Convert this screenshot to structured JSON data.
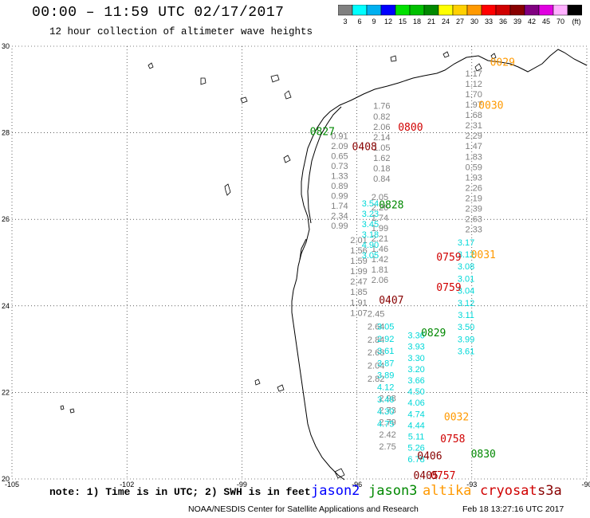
{
  "title": "00:00 – 11:59 UTC 02/17/2017",
  "subtitle": "12 hour collection of altimeter wave heights",
  "legend": {
    "colors": [
      "#808080",
      "#00ffff",
      "#00b0f0",
      "#0000ff",
      "#00e000",
      "#00c000",
      "#008800",
      "#ffff00",
      "#ffd000",
      "#ff9900",
      "#ff0000",
      "#d00000",
      "#880000",
      "#800080",
      "#e000e0",
      "#ffb0ff",
      "#000000"
    ],
    "labels": [
      "3",
      "6",
      "9",
      "12",
      "15",
      "18",
      "21",
      "24",
      "27",
      "30",
      "33",
      "36",
      "39",
      "42",
      "45",
      "70",
      "(ft)"
    ]
  },
  "axes": {
    "lon_ticks": [
      "-105",
      "-102",
      "-99",
      "-96",
      "-93",
      "-90"
    ],
    "lat_ticks": [
      "30",
      "28",
      "26",
      "24",
      "22",
      "20"
    ]
  },
  "note": "note: 1) Time is in UTC; 2) SWH is in feet",
  "satellites": [
    {
      "name": "jason2",
      "color": "#0000ff"
    },
    {
      "name": "jason3",
      "color": "#008800"
    },
    {
      "name": "altika",
      "color": "#ff9900"
    },
    {
      "name": "cryosat",
      "color": "#d00000"
    },
    {
      "name": "s3a",
      "color": "#880000"
    }
  ],
  "footer": "NOAA/NESDIS Center for Satellite Applications and Research",
  "footer_time": "Feb 18 13:27:16 UTC 2017",
  "pass_times": [
    {
      "label": "0029",
      "color": "#ff9900",
      "lon": -92.2,
      "lat": 29.55
    },
    {
      "label": "0030",
      "color": "#ff9900",
      "lon": -92.5,
      "lat": 28.55
    },
    {
      "label": "0031",
      "color": "#ff9900",
      "lon": -92.7,
      "lat": 25.1
    },
    {
      "label": "0032",
      "color": "#ff9900",
      "lon": -93.4,
      "lat": 21.35
    },
    {
      "label": "0800",
      "color": "#d00000",
      "lon": -94.6,
      "lat": 28.05
    },
    {
      "label": "0759",
      "color": "#d00000",
      "lon": -93.6,
      "lat": 25.05
    },
    {
      "label": "0759",
      "color": "#d00000",
      "lon": -93.6,
      "lat": 24.35
    },
    {
      "label": "0758",
      "color": "#d00000",
      "lon": -93.5,
      "lat": 20.85
    },
    {
      "label": "0757",
      "color": "#d00000",
      "lon": -93.75,
      "lat": 20.0
    },
    {
      "label": "0408",
      "color": "#880000",
      "lon": -95.8,
      "lat": 27.6
    },
    {
      "label": "0407",
      "color": "#880000",
      "lon": -95.1,
      "lat": 24.05
    },
    {
      "label": "0406",
      "color": "#880000",
      "lon": -94.1,
      "lat": 20.45
    },
    {
      "label": "0405",
      "color": "#880000",
      "lon": -94.2,
      "lat": 20.0
    },
    {
      "label": "0827",
      "color": "#008800",
      "lon": -96.9,
      "lat": 27.95
    },
    {
      "label": "0828",
      "color": "#008800",
      "lon": -95.1,
      "lat": 26.25
    },
    {
      "label": "0829",
      "color": "#008800",
      "lon": -94.0,
      "lat": 23.3
    },
    {
      "label": "0830",
      "color": "#008800",
      "lon": -92.7,
      "lat": 20.5
    }
  ],
  "wave_columns": [
    {
      "color": "#808080",
      "lon": -92.95,
      "lat_start": 29.3,
      "lat_step": -0.24,
      "values": [
        "1.17",
        "1.12",
        "1.70",
        "1.97",
        "1.68",
        "2.31",
        "2.29",
        "1.47",
        "1.83",
        "0.59",
        "1.93",
        "2.26",
        "2.19",
        "2.39",
        "2.63",
        "2.33"
      ]
    },
    {
      "color": "#808080",
      "lon": -95.35,
      "lat_start": 28.55,
      "lat_step": -0.24,
      "values": [
        "1.76",
        "0.82",
        "2.06",
        "2.14",
        "1.05",
        "1.62",
        "0.18",
        "0.84"
      ]
    },
    {
      "color": "#808080",
      "lon": -95.4,
      "lat_start": 26.45,
      "lat_step": -0.24,
      "values": [
        "2.05",
        "2.26",
        "1.74",
        "1.99",
        "2.21",
        "1.46",
        "1.42",
        "1.81",
        "2.06"
      ]
    },
    {
      "color": "#808080",
      "lon": -96.45,
      "lat_start": 27.85,
      "lat_step": -0.23,
      "values": [
        "0.91",
        "2.09",
        "0.65",
        "0.73",
        "1.33",
        "0.89",
        "0.99",
        "1.74",
        "2.34",
        "0.99"
      ]
    },
    {
      "color": "#808080",
      "lon": -95.95,
      "lat_start": 25.45,
      "lat_step": -0.24,
      "values": [
        "2.01",
        "1.56",
        "1.59",
        "1.99",
        "2.47",
        "1.85",
        "1.91",
        "1.07"
      ]
    },
    {
      "color": "#808080",
      "lon": -95.5,
      "lat_start": 23.75,
      "lat_step": -0.3,
      "values": [
        "2.45",
        "2.64",
        "2.84",
        "2.68",
        "2.04",
        "2.82"
      ]
    },
    {
      "color": "#808080",
      "lon": -95.2,
      "lat_start": 21.8,
      "lat_step": -0.28,
      "values": [
        "2.98",
        "2.73",
        "2.79",
        "2.42",
        "2.75"
      ]
    },
    {
      "color": "#00d8d8",
      "lon": -93.15,
      "lat_start": 25.4,
      "lat_step": -0.28,
      "values": [
        "3.17",
        "3.12",
        "3.08",
        "3.01",
        "3.04",
        "3.12",
        "3.11",
        "3.50",
        "3.99",
        "3.61"
      ]
    },
    {
      "color": "#00d8d8",
      "lon": -94.45,
      "lat_start": 23.25,
      "lat_step": -0.26,
      "values": [
        "3.36",
        "3.93",
        "3.30",
        "3.20",
        "3.66",
        "4.50",
        "4.06",
        "4.74",
        "4.44",
        "5.11",
        "5.26",
        "6.78"
      ]
    },
    {
      "color": "#00d8d8",
      "lon": -95.25,
      "lat_start": 23.45,
      "lat_step": -0.28,
      "values": [
        "3.05",
        "2.92",
        "3.61",
        "3.87",
        "3.89",
        "4.12",
        "3.46",
        "4.30",
        "4.75"
      ]
    },
    {
      "color": "#00d8d8",
      "lon": -95.65,
      "lat_start": 26.3,
      "lat_step": -0.24,
      "values": [
        "3.54",
        "3.23",
        "3.45",
        "3.18",
        "4.90",
        "3.05"
      ]
    }
  ]
}
